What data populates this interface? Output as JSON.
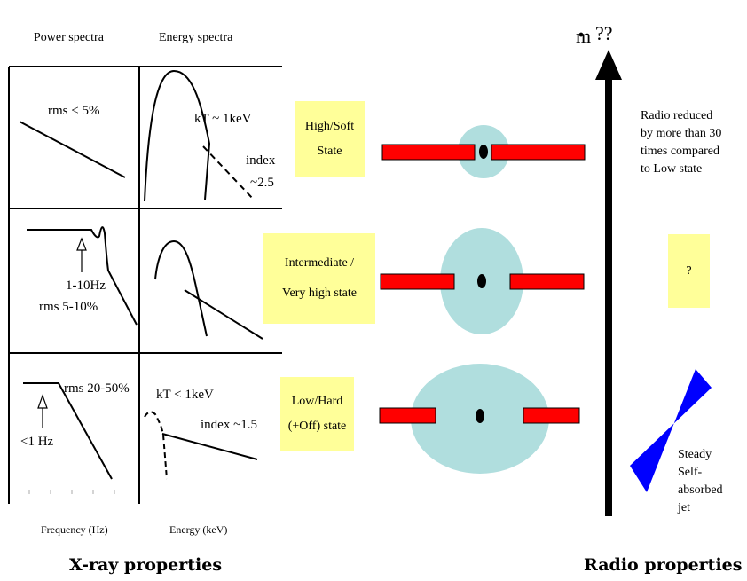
{
  "headers": {
    "power_spectra": "Power spectra",
    "energy_spectra": "Energy spectra",
    "frequency_axis": "Frequency (Hz)",
    "energy_axis": "Energy (keV)"
  },
  "panels": {
    "high": {
      "power_label": "rms < 5%",
      "energy_temp": "kT ~ 1keV",
      "energy_index_line1": "index",
      "energy_index_line2": "~2.5"
    },
    "intermediate": {
      "power_freq": "1-10Hz",
      "power_rms": "rms 5-10%"
    },
    "low": {
      "power_rms": "rms 20-50%",
      "power_freq": "<1 Hz",
      "energy_temp": "kT < 1keV",
      "energy_index": "index ~1.5"
    }
  },
  "states": {
    "high": {
      "line1": "High/Soft",
      "line2": "State"
    },
    "intermediate": {
      "line1": "Intermediate /",
      "line2": "Very high state"
    },
    "low": {
      "line1": "Low/Hard",
      "line2": "(+Off) state"
    }
  },
  "axis": {
    "label_dot": "·",
    "label_symbol": "m",
    "label_suffix": "??"
  },
  "radio": {
    "high_note": [
      "Radio reduced",
      "by more than 30",
      "times compared",
      "to Low state"
    ],
    "intermediate_note": "?",
    "low_note": [
      "Steady",
      "Self-",
      "absorbed",
      "jet"
    ]
  },
  "sections": {
    "xray": "X-ray properties",
    "radio": "Radio properties"
  },
  "colors": {
    "state_box": "#ffff99",
    "disk": "#ff0000",
    "corona": "#b0dede",
    "jet": "#0000ff",
    "line": "#000000"
  }
}
